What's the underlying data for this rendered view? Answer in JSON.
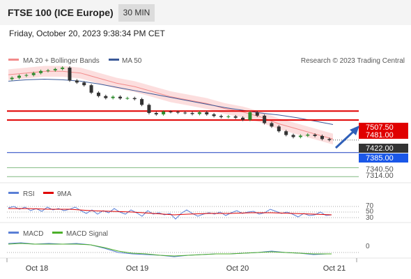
{
  "header": {
    "title": "FTSE 100 (ICE Europe)",
    "timeframe": "30 MIN"
  },
  "date": "Friday, October 20, 2023 9:38:34 PM CET",
  "legend": {
    "bb": "MA 20 + Bollinger Bands",
    "ma50": "MA 50",
    "credit": "Research © 2023 Trading Central"
  },
  "colors": {
    "bb": "#f28b8b",
    "ma50": "#3b5998",
    "resistance": "#e00000",
    "support": "#1a3fbf",
    "green": "#2e8b2e",
    "up": "#2e8b2e",
    "down": "#333333"
  },
  "chart_data": [
    {
      "type": "line",
      "panel": "price",
      "x_ticks": [
        "Oct 18",
        "Oct 19",
        "Oct 20",
        "Oct 21"
      ],
      "ylim": [
        7300,
        7640
      ],
      "price_axis_labels": [
        "7507.50",
        "7481.00",
        "7422.00",
        "7385.00",
        "7340.50",
        "7314.00"
      ],
      "levels": [
        {
          "value": 7507.5,
          "label": "7507.50",
          "kind": "resistance"
        },
        {
          "value": 7481.0,
          "label": "7481.00",
          "kind": "resistance"
        },
        {
          "value": 7385.0,
          "label": "7385.00",
          "kind": "support"
        },
        {
          "value": 7340.5,
          "label": "7340.50",
          "kind": "target"
        },
        {
          "value": 7314.0,
          "label": "7314.00",
          "kind": "target"
        }
      ],
      "last_price": {
        "value": 7422.0,
        "label": "7422.00"
      },
      "series": [
        {
          "name": "MA 20 + Bollinger Bands",
          "values": [
            7615,
            7620,
            7625,
            7625,
            7620,
            7605,
            7590,
            7580,
            7565,
            7550,
            7540,
            7530,
            7515,
            7505,
            7490,
            7470,
            7455,
            7440,
            7425
          ]
        },
        {
          "name": "MA 50",
          "values": [
            7596,
            7600,
            7602,
            7600,
            7596,
            7588,
            7578,
            7568,
            7558,
            7548,
            7538,
            7528,
            7518,
            7510,
            7502,
            7496,
            7488,
            7478,
            7468
          ]
        }
      ],
      "candle_closes": [
        7606,
        7612,
        7614,
        7620,
        7626,
        7628,
        7632,
        7636,
        7598,
        7592,
        7584,
        7562,
        7552,
        7546,
        7550,
        7545,
        7546,
        7543,
        7526,
        7502,
        7498,
        7506,
        7505,
        7503,
        7502,
        7499,
        7504,
        7498,
        7493,
        7490,
        7492,
        7488,
        7482,
        7504,
        7494,
        7472,
        7462,
        7448,
        7437,
        7431,
        7435,
        7438,
        7434,
        7425,
        7422
      ]
    },
    {
      "type": "line",
      "panel": "RSI",
      "series": [
        {
          "name": "RSI"
        },
        {
          "name": "9MA"
        }
      ],
      "levels": [
        70,
        50,
        30
      ]
    },
    {
      "type": "line",
      "panel": "MACD",
      "series": [
        {
          "name": "MACD"
        },
        {
          "name": "MACD Signal"
        }
      ],
      "levels": [
        0
      ]
    }
  ]
}
